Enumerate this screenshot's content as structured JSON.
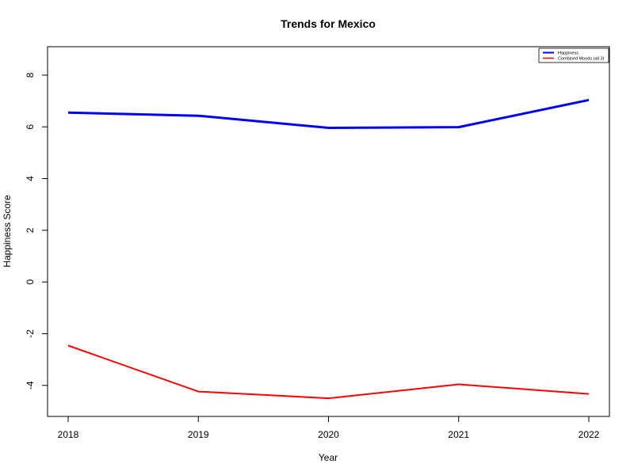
{
  "chart_data": {
    "type": "line",
    "title": "Trends for Mexico",
    "xlabel": "Year",
    "ylabel": "Happiness Score",
    "x": [
      2018,
      2019,
      2020,
      2021,
      2022
    ],
    "xticks": [
      "2018",
      "2019",
      "2020",
      "2021",
      "2022"
    ],
    "yticks": [
      "-4",
      "-2",
      "0",
      "2",
      "4",
      "6",
      "8"
    ],
    "ylim": [
      -5.2,
      9.1
    ],
    "grid": false,
    "legend_position": "top-right",
    "series": [
      {
        "name": "Happiness",
        "color": "#0000ff",
        "values": [
          6.55,
          6.43,
          5.96,
          5.99,
          7.04
        ]
      },
      {
        "name": "Combined Moods (all 3)",
        "color": "#ff0000",
        "values": [
          -2.46,
          -4.24,
          -4.5,
          -3.96,
          -4.33
        ]
      }
    ]
  }
}
